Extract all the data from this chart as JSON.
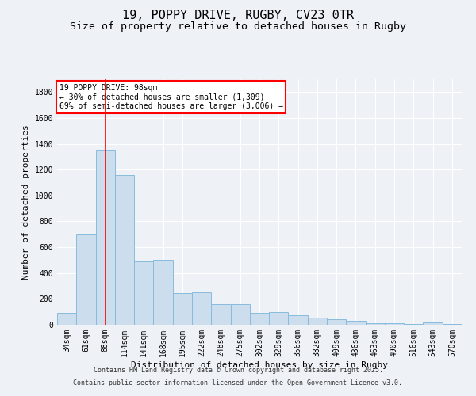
{
  "title1": "19, POPPY DRIVE, RUGBY, CV23 0TR",
  "title2": "Size of property relative to detached houses in Rugby",
  "xlabel": "Distribution of detached houses by size in Rugby",
  "ylabel": "Number of detached properties",
  "bar_labels": [
    "34sqm",
    "61sqm",
    "88sqm",
    "114sqm",
    "141sqm",
    "168sqm",
    "195sqm",
    "222sqm",
    "248sqm",
    "275sqm",
    "302sqm",
    "329sqm",
    "356sqm",
    "382sqm",
    "409sqm",
    "436sqm",
    "463sqm",
    "490sqm",
    "516sqm",
    "543sqm",
    "570sqm"
  ],
  "bar_values": [
    90,
    700,
    1350,
    1160,
    490,
    500,
    245,
    250,
    160,
    160,
    95,
    100,
    75,
    55,
    45,
    30,
    15,
    10,
    5,
    20,
    5
  ],
  "bar_color": "#ccdded",
  "bar_edge_color": "#88bbdd",
  "vline_x": 2,
  "vline_color": "red",
  "ylim": [
    0,
    1900
  ],
  "yticks": [
    0,
    200,
    400,
    600,
    800,
    1000,
    1200,
    1400,
    1600,
    1800
  ],
  "annotation_text": "19 POPPY DRIVE: 98sqm\n← 30% of detached houses are smaller (1,309)\n69% of semi-detached houses are larger (3,006) →",
  "annotation_box_color": "white",
  "annotation_box_edge": "red",
  "footer1": "Contains HM Land Registry data © Crown copyright and database right 2025.",
  "footer2": "Contains public sector information licensed under the Open Government Licence v3.0.",
  "bg_color": "#eef2f7",
  "grid_color": "white",
  "title1_fontsize": 11,
  "title2_fontsize": 9.5,
  "xlabel_fontsize": 8,
  "ylabel_fontsize": 8,
  "tick_fontsize": 7,
  "annotation_fontsize": 7,
  "footer_fontsize": 6
}
